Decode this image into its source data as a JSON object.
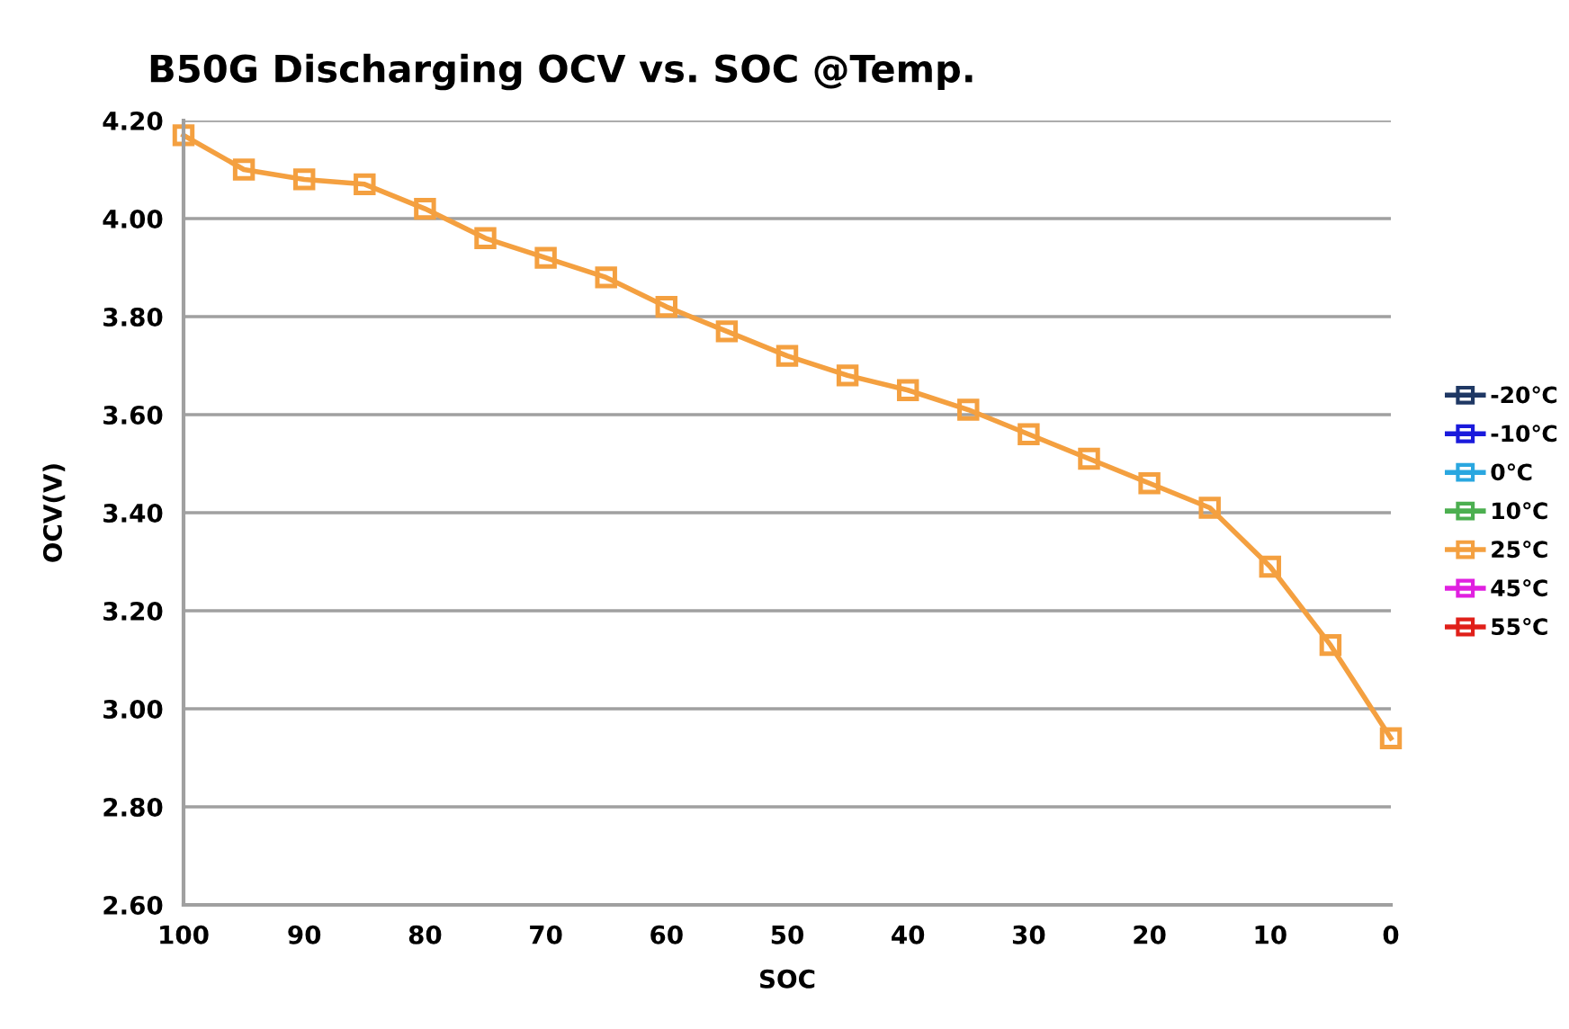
{
  "chart_data": {
    "type": "line",
    "title": "B50G Discharging OCV vs. SOC @Temp.",
    "xlabel": "SOC",
    "ylabel": "OCV(V)",
    "x": [
      100,
      95,
      90,
      85,
      80,
      75,
      70,
      65,
      60,
      55,
      50,
      45,
      40,
      35,
      30,
      25,
      20,
      15,
      10,
      5,
      0
    ],
    "series": [
      {
        "name": "-20℃",
        "color": "#1f3864",
        "values": [
          null,
          null,
          null,
          null,
          null,
          null,
          null,
          null,
          null,
          null,
          null,
          null,
          null,
          null,
          null,
          null,
          null,
          null,
          null,
          null,
          null
        ]
      },
      {
        "name": "-10℃",
        "color": "#1a1adc",
        "values": [
          null,
          null,
          null,
          null,
          null,
          null,
          null,
          null,
          null,
          null,
          null,
          null,
          null,
          null,
          null,
          null,
          null,
          null,
          null,
          null,
          null
        ]
      },
      {
        "name": "0℃",
        "color": "#2aa7e0",
        "values": [
          null,
          null,
          null,
          null,
          null,
          null,
          null,
          null,
          null,
          null,
          null,
          null,
          null,
          null,
          null,
          null,
          null,
          null,
          null,
          null,
          null
        ]
      },
      {
        "name": "10℃",
        "color": "#4caf50",
        "values": [
          null,
          null,
          null,
          null,
          null,
          null,
          null,
          null,
          null,
          null,
          null,
          null,
          null,
          null,
          null,
          null,
          null,
          null,
          null,
          null,
          null
        ]
      },
      {
        "name": "25℃",
        "color": "#f4a040",
        "values": [
          4.17,
          4.1,
          4.08,
          4.07,
          4.02,
          3.96,
          3.92,
          3.88,
          3.82,
          3.77,
          3.72,
          3.68,
          3.65,
          3.61,
          3.56,
          3.51,
          3.46,
          3.41,
          3.29,
          3.13,
          2.94
        ]
      },
      {
        "name": "45℃",
        "color": "#e020e0",
        "values": [
          null,
          null,
          null,
          null,
          null,
          null,
          null,
          null,
          null,
          null,
          null,
          null,
          null,
          null,
          null,
          null,
          null,
          null,
          null,
          null,
          null
        ]
      },
      {
        "name": "55℃",
        "color": "#e0201a",
        "values": [
          null,
          null,
          null,
          null,
          null,
          null,
          null,
          null,
          null,
          null,
          null,
          null,
          null,
          null,
          null,
          null,
          null,
          null,
          null,
          null,
          null
        ]
      }
    ],
    "xlim": [
      100,
      0
    ],
    "xticks": [
      100,
      90,
      80,
      70,
      60,
      50,
      40,
      30,
      20,
      10,
      0
    ],
    "ylim": [
      2.6,
      4.2
    ],
    "yticks": [
      {
        "value": 2.6,
        "label": "2.60"
      },
      {
        "value": 2.8,
        "label": "2.80"
      },
      {
        "value": 3.0,
        "label": "3.00"
      },
      {
        "value": 3.2,
        "label": "3.20"
      },
      {
        "value": 3.4,
        "label": "3.40"
      },
      {
        "value": 3.6,
        "label": "3.60"
      },
      {
        "value": 3.8,
        "label": "3.80"
      },
      {
        "value": 4.0,
        "label": "4.00"
      },
      {
        "value": 4.2,
        "label": "4.20"
      }
    ],
    "grid": "y",
    "legend": "right",
    "marker": "square",
    "line_style": "solid"
  }
}
